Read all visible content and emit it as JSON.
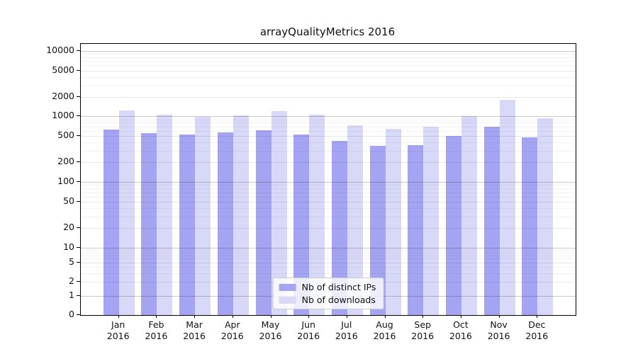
{
  "title": "arrayQualityMetrics 2016",
  "chart_data": {
    "type": "bar",
    "title": "arrayQualityMetrics 2016",
    "categories": [
      {
        "month": "Jan",
        "year": "2016"
      },
      {
        "month": "Feb",
        "year": "2016"
      },
      {
        "month": "Mar",
        "year": "2016"
      },
      {
        "month": "Apr",
        "year": "2016"
      },
      {
        "month": "May",
        "year": "2016"
      },
      {
        "month": "Jun",
        "year": "2016"
      },
      {
        "month": "Jul",
        "year": "2016"
      },
      {
        "month": "Aug",
        "year": "2016"
      },
      {
        "month": "Sep",
        "year": "2016"
      },
      {
        "month": "Oct",
        "year": "2016"
      },
      {
        "month": "Nov",
        "year": "2016"
      },
      {
        "month": "Dec",
        "year": "2016"
      }
    ],
    "series": [
      {
        "name": "Nb of distinct IPs",
        "color": "#a4a4f2",
        "values": [
          635,
          555,
          535,
          570,
          620,
          525,
          420,
          357,
          365,
          505,
          700,
          485
        ]
      },
      {
        "name": "Nb of downloads",
        "color": "#d8d8f8",
        "values": [
          1220,
          1060,
          990,
          1040,
          1210,
          1060,
          730,
          655,
          700,
          1010,
          1790,
          945
        ]
      }
    ],
    "xlabel": "",
    "ylabel": "",
    "yscale": "log above 1, linear 0-1",
    "y_ticks": [
      0,
      1,
      2,
      5,
      10,
      20,
      50,
      100,
      200,
      500,
      1000,
      2000,
      5000,
      10000
    ],
    "ylim": [
      0,
      12700
    ],
    "grid": "horizontal major+minor",
    "legend_position": "lower center"
  }
}
